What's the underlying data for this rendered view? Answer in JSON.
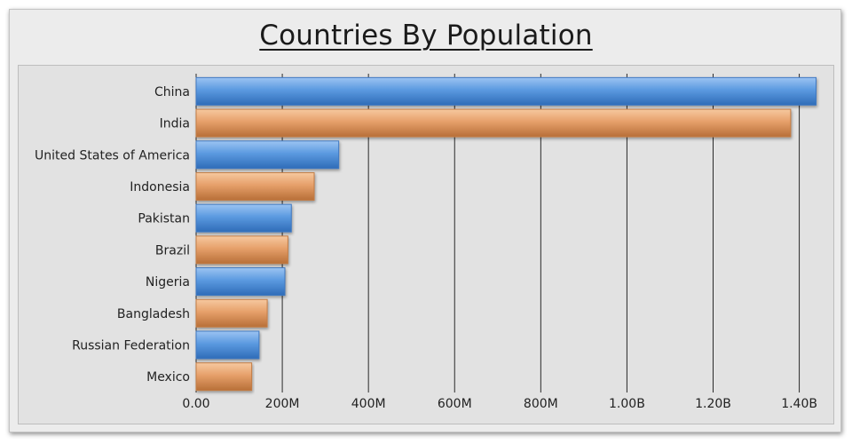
{
  "chart_data": {
    "type": "bar",
    "orientation": "horizontal",
    "title": "Countries By Population",
    "xlabel": "",
    "ylabel": "",
    "categories": [
      "China",
      "India",
      "United States of America",
      "Indonesia",
      "Pakistan",
      "Brazil",
      "Nigeria",
      "Bangladesh",
      "Russian Federation",
      "Mexico"
    ],
    "values": [
      1439000000,
      1380000000,
      331000000,
      274000000,
      221000000,
      213000000,
      206000000,
      165000000,
      146000000,
      129000000
    ],
    "xlim": [
      0,
      1440000000
    ],
    "x_ticks": [
      0,
      200000000,
      400000000,
      600000000,
      800000000,
      1000000000,
      1200000000,
      1400000000
    ],
    "x_tick_labels": [
      "0.00",
      "200M",
      "400M",
      "600M",
      "800M",
      "1.00B",
      "1.20B",
      "1.40B"
    ],
    "grid": "vertical",
    "bar_colors": [
      "#5b9ae0",
      "#e8a56e"
    ]
  }
}
